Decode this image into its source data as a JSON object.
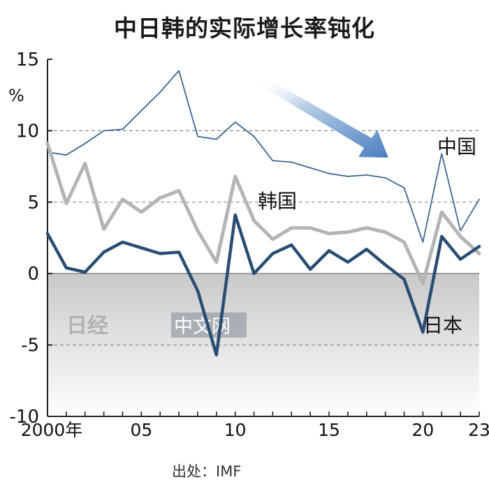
{
  "chart_data": {
    "type": "line",
    "title": "中日韩的实际增长率钝化",
    "ylabel": "%",
    "source": "出处：IMF",
    "ylim": [
      -10,
      15
    ],
    "yticks": [
      15,
      10,
      5,
      0,
      -5,
      -10
    ],
    "xlim": [
      2000,
      2023
    ],
    "xticks": [
      {
        "x": 2000,
        "label": "2000年"
      },
      {
        "x": 2005,
        "label": "05"
      },
      {
        "x": 2010,
        "label": "10"
      },
      {
        "x": 2015,
        "label": "15"
      },
      {
        "x": 2020,
        "label": "20"
      },
      {
        "x": 2023,
        "label": "23"
      }
    ],
    "x": [
      2000,
      2001,
      2002,
      2003,
      2004,
      2005,
      2006,
      2007,
      2008,
      2009,
      2010,
      2011,
      2012,
      2013,
      2014,
      2015,
      2016,
      2017,
      2018,
      2019,
      2020,
      2021,
      2022,
      2023
    ],
    "series": [
      {
        "name": "中国",
        "color": "#3f6690",
        "values": [
          8.5,
          8.3,
          9.1,
          10.0,
          10.1,
          11.4,
          12.7,
          14.2,
          9.6,
          9.4,
          10.6,
          9.6,
          7.9,
          7.8,
          7.4,
          7.0,
          6.8,
          6.9,
          6.7,
          6.0,
          2.2,
          8.4,
          3.0,
          5.2
        ]
      },
      {
        "name": "韩国",
        "color": "#b4b4b4",
        "values": [
          9.1,
          4.9,
          7.7,
          3.1,
          5.2,
          4.3,
          5.3,
          5.8,
          3.0,
          0.8,
          6.8,
          3.7,
          2.4,
          3.2,
          3.2,
          2.8,
          2.9,
          3.2,
          2.9,
          2.2,
          -0.7,
          4.3,
          2.6,
          1.4
        ]
      },
      {
        "name": "日本",
        "color": "#2a4d73",
        "values": [
          2.8,
          0.4,
          0.1,
          1.5,
          2.2,
          1.8,
          1.4,
          1.5,
          -1.2,
          -5.7,
          4.1,
          0.0,
          1.4,
          2.0,
          0.3,
          1.6,
          0.8,
          1.7,
          0.6,
          -0.4,
          -4.1,
          2.6,
          1.0,
          1.9
        ]
      }
    ],
    "annotation": "downward-arrow",
    "grid": "dashed-horizontal",
    "negative_region_shaded": true
  },
  "watermark": {
    "text": "日经中文网"
  }
}
